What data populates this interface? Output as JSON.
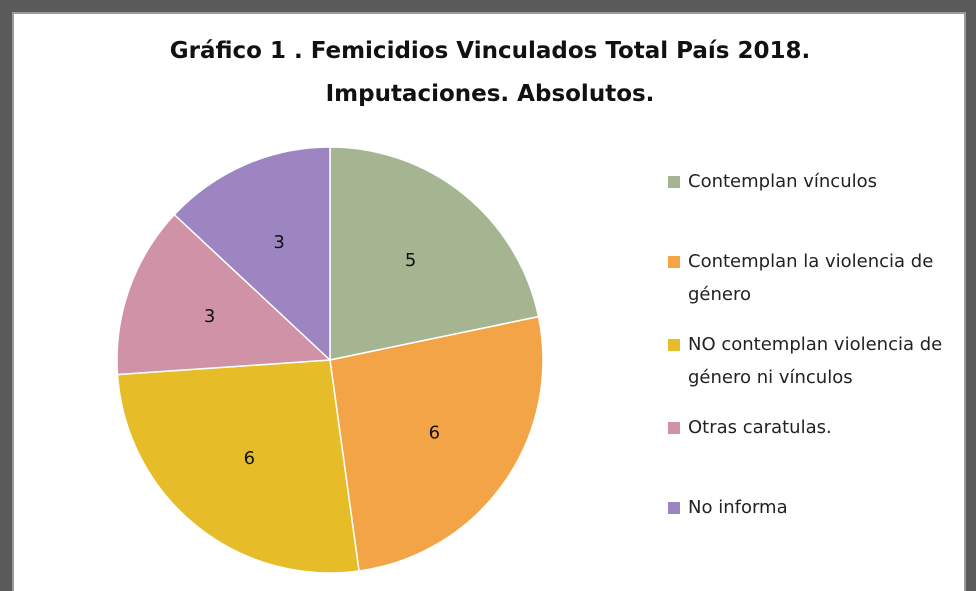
{
  "chart_data": {
    "type": "pie",
    "title": "Gráfico 1 . Femicidios Vinculados Total País 2018. Imputaciones. Absolutos.",
    "categories": [
      "Contemplan vínculos",
      "Contemplan la violencia de género",
      "NO contemplan violencia de género ni vínculos",
      "Otras caratulas.",
      "No informa"
    ],
    "values": [
      5,
      6,
      6,
      3,
      3
    ],
    "colors": [
      "#a5b592",
      "#f3a447",
      "#e7bc29",
      "#d092a7",
      "#9c85c0"
    ],
    "legend": "right"
  }
}
